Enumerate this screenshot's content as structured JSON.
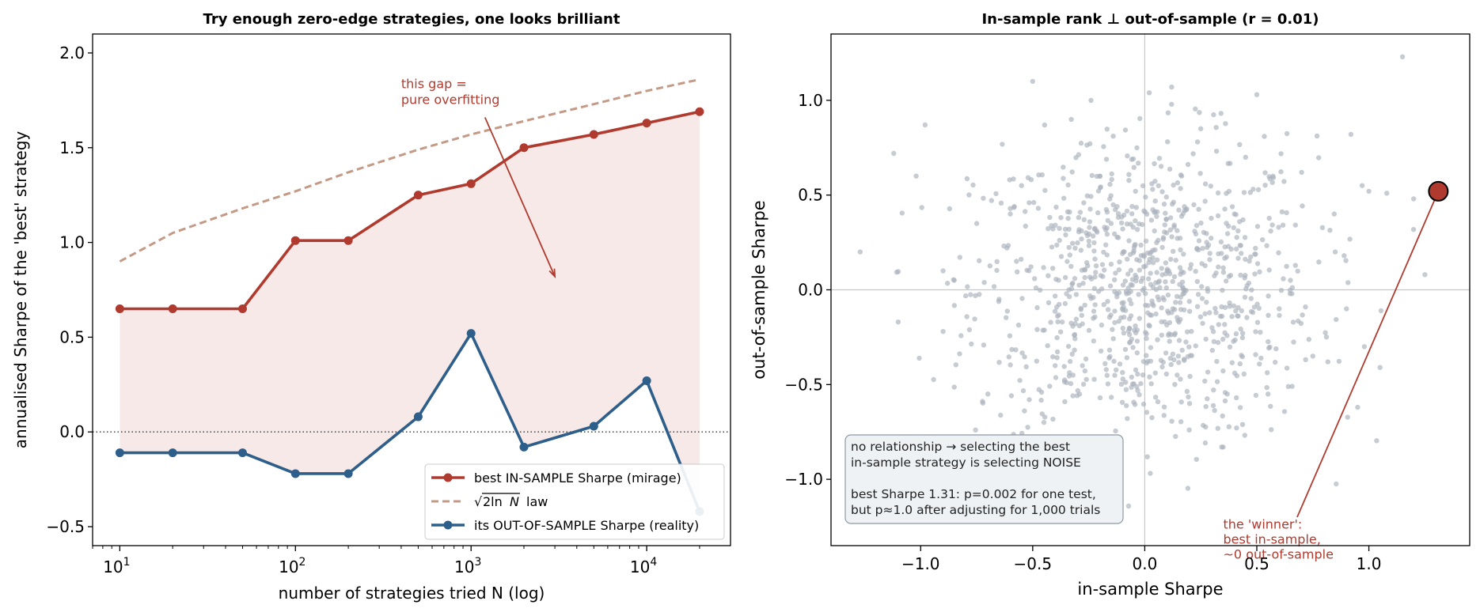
{
  "chart_data": [
    {
      "type": "line",
      "title": "Try enough zero-edge strategies, one looks brilliant",
      "xlabel": "number of strategies tried  N  (log)",
      "ylabel": "annualised Sharpe of the 'best' strategy",
      "xscale": "log",
      "xlim": [
        7,
        30000
      ],
      "ylim": [
        -0.6,
        2.1
      ],
      "xticks": [
        {
          "v": 10,
          "base": "10",
          "exp": "1"
        },
        {
          "v": 100,
          "base": "10",
          "exp": "2"
        },
        {
          "v": 1000,
          "base": "10",
          "exp": "3"
        },
        {
          "v": 10000,
          "base": "10",
          "exp": "4"
        }
      ],
      "yticks": [
        {
          "v": -0.5,
          "label": "−0.5"
        },
        {
          "v": 0.0,
          "label": "0.0"
        },
        {
          "v": 0.5,
          "label": "0.5"
        },
        {
          "v": 1.0,
          "label": "1.0"
        },
        {
          "v": 1.5,
          "label": "1.5"
        },
        {
          "v": 2.0,
          "label": "2.0"
        }
      ],
      "x": [
        10,
        20,
        50,
        100,
        200,
        500,
        1000,
        2000,
        5000,
        10000,
        20000
      ],
      "series": [
        {
          "name": "best IN-SAMPLE Sharpe (mirage)",
          "color": "#b03a2e",
          "style": "solid-markers",
          "values": [
            0.65,
            0.65,
            0.65,
            1.01,
            1.01,
            1.25,
            1.31,
            1.5,
            1.57,
            1.63,
            1.69
          ]
        },
        {
          "name": "√2lnN law",
          "color": "#c49a86",
          "style": "dashed",
          "values": [
            0.9,
            1.05,
            1.18,
            1.27,
            1.37,
            1.49,
            1.57,
            1.64,
            1.73,
            1.8,
            1.86
          ]
        },
        {
          "name": "its OUT-OF-SAMPLE Sharpe (reality)",
          "color": "#2e5e8a",
          "style": "solid-markers",
          "values": [
            -0.11,
            -0.11,
            -0.11,
            -0.22,
            -0.22,
            0.08,
            0.52,
            -0.08,
            0.03,
            0.27,
            -0.42
          ]
        }
      ],
      "legend": {
        "position": "bottom-right",
        "items": [
          "best IN-SAMPLE Sharpe (mirage)",
          "law",
          "its OUT-OF-SAMPLE Sharpe (reality)"
        ]
      },
      "legend_law_formula": {
        "root": "√",
        "expr_a": "2ln",
        "expr_b": "N"
      },
      "reference_line": {
        "y": 0.0,
        "style": "dotted"
      },
      "annotation": {
        "lines": [
          "this gap =",
          "pure overfitting"
        ],
        "color": "#b03a2e",
        "target": {
          "x": 3000,
          "y": 0.82
        },
        "text_anchor": {
          "x": 400,
          "y": 1.74
        }
      }
    },
    {
      "type": "scatter",
      "title": "In-sample rank ⊥ out-of-sample (r = 0.01)",
      "xlabel": "in-sample Sharpe",
      "ylabel": "out-of-sample Sharpe",
      "xlim": [
        -1.4,
        1.45
      ],
      "ylim": [
        -1.35,
        1.35
      ],
      "xticks": [
        {
          "v": -1.0,
          "label": "−1.0"
        },
        {
          "v": -0.5,
          "label": "−0.5"
        },
        {
          "v": 0.0,
          "label": "0.0"
        },
        {
          "v": 0.5,
          "label": "0.5"
        },
        {
          "v": 1.0,
          "label": "1.0"
        }
      ],
      "yticks": [
        {
          "v": -1.0,
          "label": "−1.0"
        },
        {
          "v": -0.5,
          "label": "−0.5"
        },
        {
          "v": 0.0,
          "label": "0.0"
        },
        {
          "v": 0.5,
          "label": "0.5"
        },
        {
          "v": 1.0,
          "label": "1.0"
        }
      ],
      "n_points": 1000,
      "point_color": "#a9b1bb",
      "sample_points": [
        [
          1.0,
          0.52
        ],
        [
          0.97,
          0.55
        ],
        [
          -1.27,
          0.2
        ],
        [
          -1.12,
          0.72
        ],
        [
          -1.02,
          0.6
        ],
        [
          -0.98,
          0.87
        ],
        [
          -0.5,
          1.1
        ],
        [
          0.02,
          1.04
        ],
        [
          0.12,
          1.07
        ],
        [
          0.5,
          1.03
        ],
        [
          1.15,
          1.23
        ],
        [
          0.92,
          0.82
        ],
        [
          1.08,
          0.51
        ],
        [
          1.2,
          0.48
        ],
        [
          1.25,
          0.08
        ],
        [
          0.98,
          -0.3
        ],
        [
          1.05,
          -0.41
        ],
        [
          0.95,
          -0.62
        ],
        [
          0.35,
          -0.83
        ],
        [
          -0.3,
          -0.95
        ],
        [
          -0.4,
          -1.01
        ],
        [
          -0.9,
          -0.22
        ],
        [
          -1.1,
          -0.17
        ],
        [
          0.6,
          -0.1
        ],
        [
          -0.6,
          0.4
        ],
        [
          0.7,
          0.62
        ],
        [
          -0.7,
          -0.55
        ],
        [
          0.2,
          -0.6
        ],
        [
          -0.2,
          0.6
        ],
        [
          0.85,
          0.2
        ],
        [
          -0.85,
          0.05
        ],
        [
          0.4,
          0.4
        ],
        [
          -0.4,
          -0.4
        ],
        [
          0.1,
          0.1
        ],
        [
          -0.1,
          -0.1
        ],
        [
          0.55,
          -0.55
        ],
        [
          -0.55,
          0.55
        ],
        [
          0.75,
          -0.35
        ],
        [
          -0.75,
          0.35
        ],
        [
          0.25,
          0.85
        ],
        [
          -0.25,
          -0.85
        ],
        [
          0.65,
          0.05
        ],
        [
          -0.65,
          -0.05
        ],
        [
          0.15,
          -0.35
        ],
        [
          -0.15,
          0.35
        ],
        [
          0.45,
          0.7
        ],
        [
          -0.45,
          -0.7
        ],
        [
          0.9,
          -0.1
        ],
        [
          -0.9,
          0.1
        ],
        [
          0.3,
          -0.2
        ]
      ],
      "highlight": {
        "x": 1.31,
        "y": 0.52,
        "color": "#b03a2e",
        "label": "the 'winner'"
      },
      "winner_annotation": {
        "lines": [
          "the 'winner':",
          "best in-sample,",
          "~0 out-of-sample"
        ],
        "color": "#b03a2e",
        "text_anchor": {
          "x": 0.35,
          "y": -1.26
        }
      },
      "info_box": {
        "lines": [
          "no relationship → selecting the best",
          "in-sample strategy is selecting NOISE",
          "",
          "best Sharpe 1.31:  p=0.002 for one test,",
          "but p≈1.0 after adjusting for 1,000 trials"
        ],
        "position": "bottom-left"
      }
    }
  ]
}
